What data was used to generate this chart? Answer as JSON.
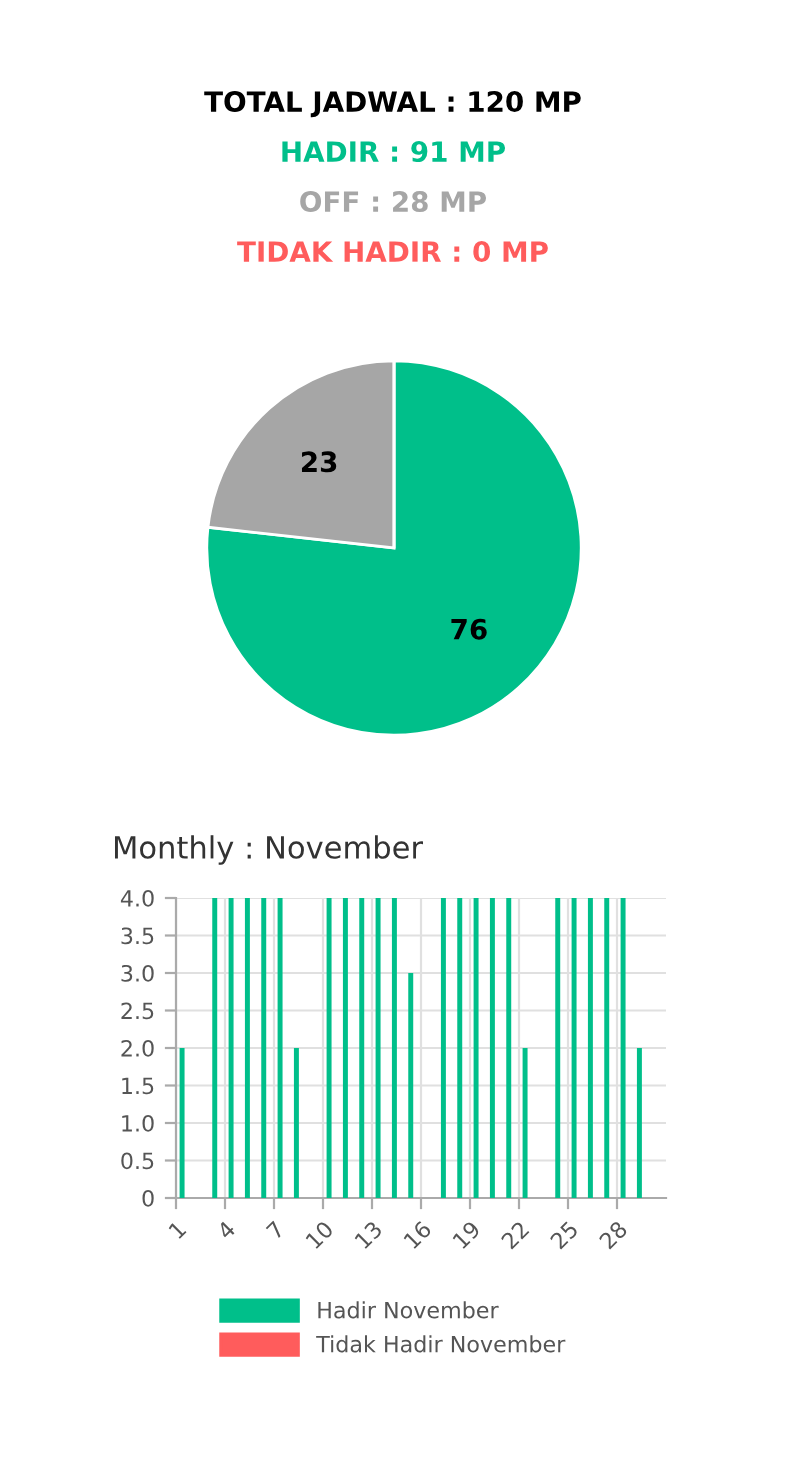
{
  "chart_data": [
    {
      "type": "pie",
      "title": "TOTAL JADWAL : 120 MP",
      "subtitle": "HADIR : 91 MP",
      "annotations": [
        "OFF : 28 MP",
        "TIDAK HADIR : 0 MP"
      ],
      "categories": [
        null,
        null,
        null
      ],
      "values": [
        76,
        23,
        0
      ],
      "colors": [
        "#00bf8a",
        "#a6a6a6",
        "#ff5c5c"
      ],
      "data_labels": true
    },
    {
      "type": "bar",
      "title": "Monthly : November",
      "categories": [
        "1",
        null,
        null,
        "4",
        null,
        null,
        "7",
        null,
        null,
        "10",
        null,
        null,
        "13",
        null,
        null,
        "16",
        null,
        null,
        "19",
        null,
        null,
        "22",
        null,
        null,
        "25",
        null,
        null,
        "28",
        null,
        null
      ],
      "series": [
        {
          "name": "Hadir November",
          "color": "#00bf8a",
          "values": [
            2,
            0,
            4,
            4,
            4,
            4,
            4,
            2,
            0,
            4,
            4,
            4,
            4,
            4,
            3,
            0,
            4,
            4,
            4,
            4,
            4,
            2,
            0,
            4,
            4,
            4,
            4,
            4,
            2,
            0
          ]
        },
        {
          "name": "Tidak Hadir November",
          "color": "#ff5c5c",
          "values": [
            0,
            0,
            0,
            0,
            0,
            0,
            0,
            0,
            0,
            0,
            0,
            0,
            0,
            0,
            0,
            0,
            0,
            0,
            0,
            0,
            0,
            0,
            0,
            0,
            0,
            0,
            0,
            0,
            0,
            0
          ]
        }
      ],
      "ylim": [
        0,
        4
      ],
      "yticks": [
        0,
        {
          "value": 0.5,
          "label": "0.5"
        },
        {
          "value": 1,
          "label": "1.0"
        },
        {
          "value": 1.5,
          "label": "1.5"
        },
        {
          "value": 2,
          "label": "2.0"
        },
        {
          "value": 2.5,
          "label": "2.5"
        },
        {
          "value": 3,
          "label": "3.0"
        },
        {
          "value": 3.5,
          "label": "3.5"
        },
        {
          "value": 4,
          "label": "4.0"
        }
      ],
      "grid": true,
      "legend": "bottom"
    }
  ]
}
